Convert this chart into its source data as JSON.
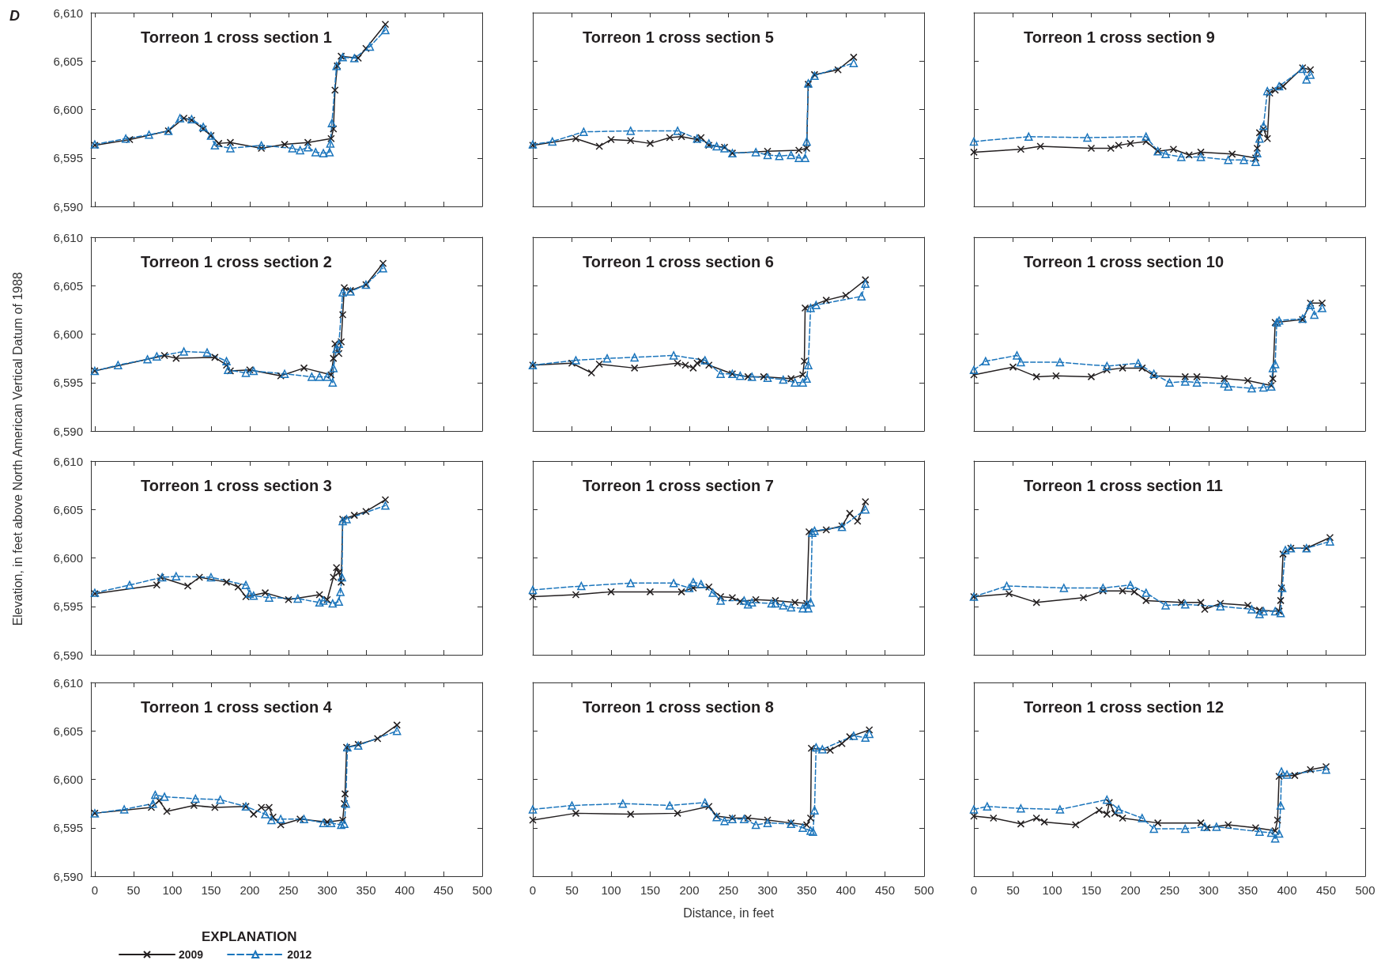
{
  "chart_data": [
    {
      "type": "line",
      "title": "Torreon 1 cross section 1",
      "annotations": [
        "D"
      ],
      "xlim": [
        -5,
        500
      ],
      "xticks": [
        0,
        50,
        100,
        150,
        200,
        250,
        300,
        350,
        400,
        450,
        500
      ],
      "ylim": [
        6590,
        6610
      ],
      "yticks": [
        {
          "value": 6590,
          "label": "6,590"
        },
        {
          "value": 6595,
          "label": "6,595"
        },
        {
          "value": 6600,
          "label": "6,600"
        },
        {
          "value": 6605,
          "label": "6,605"
        },
        {
          "value": 6610,
          "label": "6,610"
        }
      ],
      "tick_labels": "y",
      "legend": false,
      "series": [
        {
          "color": "#231f20",
          "marker": "cross",
          "line_style": "solid",
          "x": [
            0,
            45,
            95,
            115,
            125,
            140,
            150,
            160,
            175,
            215,
            245,
            275,
            305,
            308,
            310,
            313,
            318,
            340,
            350,
            375
          ],
          "values": [
            6596.3,
            6596.9,
            6597.8,
            6599.1,
            6598.9,
            6598,
            6597.3,
            6596.5,
            6596.6,
            6596,
            6596.4,
            6596.6,
            6597,
            6598,
            6602,
            6604.5,
            6605.5,
            6605.3,
            6606.3,
            6608.8
          ]
        },
        {
          "color": "#1b75bc",
          "marker": "triangle",
          "line_style": "dashed",
          "x": [
            0,
            40,
            70,
            95,
            110,
            125,
            140,
            150,
            155,
            175,
            215,
            255,
            265,
            275,
            285,
            295,
            303,
            304,
            306,
            312,
            320,
            335,
            355,
            375
          ],
          "values": [
            6596.4,
            6597,
            6597.4,
            6597.8,
            6599.1,
            6599,
            6598.2,
            6597.3,
            6596.3,
            6596,
            6596.3,
            6596,
            6595.8,
            6596.1,
            6595.6,
            6595.5,
            6595.6,
            6596.5,
            6598.6,
            6604.5,
            6605.4,
            6605.3,
            6606.5,
            6608.2
          ]
        }
      ]
    },
    {
      "type": "line",
      "title": "Torreon 1 cross section 5",
      "xlim": [
        0,
        500
      ],
      "xticks": [
        0,
        50,
        100,
        150,
        200,
        250,
        300,
        350,
        400,
        450,
        500
      ],
      "ylim": [
        6590,
        6610
      ],
      "yticks": [
        6590,
        6595,
        6600,
        6605,
        6610
      ],
      "tick_labels": false,
      "legend": false,
      "series": [
        {
          "color": "#231f20",
          "marker": "cross",
          "line_style": "solid",
          "x": [
            0,
            55,
            85,
            100,
            125,
            150,
            175,
            190,
            210,
            215,
            225,
            245,
            255,
            300,
            340,
            350,
            352,
            360,
            390,
            410
          ],
          "values": [
            6596.3,
            6597,
            6596.2,
            6596.9,
            6596.8,
            6596.5,
            6597.1,
            6597.2,
            6596.9,
            6597.1,
            6596.3,
            6596.1,
            6595.5,
            6595.7,
            6595.8,
            6596,
            6602.6,
            6603.6,
            6604.1,
            6605.4
          ]
        },
        {
          "color": "#1b75bc",
          "marker": "triangle",
          "line_style": "dashed",
          "x": [
            0,
            25,
            65,
            125,
            185,
            210,
            225,
            235,
            245,
            255,
            285,
            300,
            315,
            330,
            340,
            348,
            350,
            352,
            360,
            410
          ],
          "values": [
            6596.4,
            6596.7,
            6597.7,
            6597.8,
            6597.8,
            6597,
            6596.5,
            6596.2,
            6596,
            6595.5,
            6595.6,
            6595.3,
            6595.2,
            6595.3,
            6595,
            6595,
            6596.7,
            6602.7,
            6603.5,
            6604.8
          ]
        }
      ]
    },
    {
      "type": "line",
      "title": "Torreon 1 cross section 9",
      "xlim": [
        0,
        500
      ],
      "xticks": [
        0,
        50,
        100,
        150,
        200,
        250,
        300,
        350,
        400,
        450,
        500
      ],
      "ylim": [
        6590,
        6610
      ],
      "yticks": [
        6590,
        6595,
        6600,
        6605,
        6610
      ],
      "tick_labels": false,
      "legend": false,
      "series": [
        {
          "color": "#231f20",
          "marker": "cross",
          "line_style": "solid",
          "x": [
            0,
            60,
            85,
            150,
            175,
            185,
            200,
            220,
            235,
            255,
            275,
            290,
            330,
            360,
            362,
            365,
            370,
            375,
            378,
            385,
            395,
            420,
            430
          ],
          "values": [
            6595.6,
            6595.9,
            6596.2,
            6596,
            6596,
            6596.3,
            6596.5,
            6596.7,
            6595.7,
            6595.9,
            6595.3,
            6595.6,
            6595.4,
            6595,
            6596,
            6597.6,
            6598,
            6597,
            6601.7,
            6602,
            6602.4,
            6604.3,
            6604.1
          ]
        },
        {
          "color": "#1b75bc",
          "marker": "triangle",
          "line_style": "dashed",
          "x": [
            0,
            70,
            145,
            220,
            235,
            245,
            265,
            290,
            325,
            345,
            360,
            362,
            365,
            370,
            375,
            390,
            420,
            425,
            430
          ],
          "values": [
            6596.7,
            6597.2,
            6597.1,
            6597.2,
            6595.7,
            6595.4,
            6595.1,
            6595.1,
            6594.8,
            6594.8,
            6594.6,
            6595.5,
            6597,
            6598.3,
            6601.9,
            6602.4,
            6604.2,
            6603.1,
            6603.6
          ]
        }
      ]
    },
    {
      "type": "line",
      "title": "Torreon 1 cross section 2",
      "ylabel": "Elevation, in feet above North American Vertical Datum of 1988",
      "xlim": [
        -5,
        500
      ],
      "xticks": [
        0,
        50,
        100,
        150,
        200,
        250,
        300,
        350,
        400,
        450,
        500
      ],
      "ylim": [
        6590,
        6610
      ],
      "yticks": [
        {
          "value": 6590,
          "label": "6,590"
        },
        {
          "value": 6595,
          "label": "6,595"
        },
        {
          "value": 6600,
          "label": "6,600"
        },
        {
          "value": 6605,
          "label": "6,605"
        },
        {
          "value": 6610,
          "label": "6,610"
        }
      ],
      "tick_labels": "y",
      "legend": false,
      "series": [
        {
          "color": "#231f20",
          "marker": "cross",
          "line_style": "solid",
          "x": [
            0,
            90,
            105,
            155,
            170,
            175,
            200,
            240,
            270,
            305,
            308,
            310,
            315,
            318,
            320,
            322,
            330,
            350,
            372
          ],
          "values": [
            6596.2,
            6597.8,
            6597.5,
            6597.6,
            6596.8,
            6596.2,
            6596.3,
            6595.7,
            6596.5,
            6595.8,
            6597.5,
            6599,
            6598,
            6599.2,
            6602,
            6604.8,
            6604.5,
            6605.1,
            6607.3
          ]
        },
        {
          "color": "#1b75bc",
          "marker": "triangle",
          "line_style": "dashed",
          "x": [
            0,
            30,
            68,
            80,
            115,
            145,
            170,
            172,
            195,
            205,
            245,
            280,
            290,
            300,
            307,
            308,
            312,
            315,
            320,
            330,
            350,
            372
          ],
          "values": [
            6596.2,
            6596.8,
            6597.4,
            6597.7,
            6598.2,
            6598.1,
            6597.2,
            6596.3,
            6596,
            6596.2,
            6595.9,
            6595.6,
            6595.6,
            6595.6,
            6595,
            6596.5,
            6598.5,
            6599,
            6604.3,
            6604.4,
            6605.1,
            6606.8
          ]
        }
      ]
    },
    {
      "type": "line",
      "title": "Torreon 1 cross section 6",
      "xlim": [
        0,
        500
      ],
      "xticks": [
        0,
        50,
        100,
        150,
        200,
        250,
        300,
        350,
        400,
        450,
        500
      ],
      "ylim": [
        6590,
        6610
      ],
      "yticks": [
        6590,
        6595,
        6600,
        6605,
        6610
      ],
      "tick_labels": false,
      "legend": false,
      "series": [
        {
          "color": "#231f20",
          "marker": "cross",
          "line_style": "solid",
          "x": [
            0,
            50,
            75,
            85,
            130,
            185,
            195,
            205,
            210,
            215,
            225,
            255,
            275,
            295,
            330,
            345,
            347,
            348,
            375,
            400,
            425
          ],
          "values": [
            6596.8,
            6597,
            6596,
            6596.9,
            6596.5,
            6597,
            6596.8,
            6596.5,
            6597,
            6597.2,
            6596.8,
            6595.9,
            6595.6,
            6595.6,
            6595.4,
            6595.8,
            6597.2,
            6602.7,
            6603.5,
            6604,
            6605.6
          ]
        },
        {
          "color": "#1b75bc",
          "marker": "triangle",
          "line_style": "dashed",
          "x": [
            0,
            55,
            95,
            130,
            180,
            220,
            240,
            255,
            265,
            280,
            300,
            320,
            335,
            345,
            350,
            352,
            355,
            362,
            420,
            425
          ],
          "values": [
            6596.8,
            6597.3,
            6597.5,
            6597.6,
            6597.8,
            6597.3,
            6595.9,
            6595.9,
            6595.7,
            6595.6,
            6595.5,
            6595.3,
            6595,
            6595,
            6595.4,
            6596.8,
            6602.7,
            6603,
            6603.9,
            6605.2
          ]
        }
      ]
    },
    {
      "type": "line",
      "title": "Torreon 1 cross section 10",
      "xlim": [
        0,
        500
      ],
      "xticks": [
        0,
        50,
        100,
        150,
        200,
        250,
        300,
        350,
        400,
        450,
        500
      ],
      "ylim": [
        6590,
        6610
      ],
      "yticks": [
        6590,
        6595,
        6600,
        6605,
        6610
      ],
      "tick_labels": false,
      "legend": false,
      "series": [
        {
          "color": "#231f20",
          "marker": "cross",
          "line_style": "solid",
          "x": [
            0,
            50,
            80,
            105,
            150,
            170,
            190,
            215,
            230,
            270,
            285,
            320,
            350,
            380,
            382,
            385,
            420,
            430,
            445
          ],
          "values": [
            6595.8,
            6596.6,
            6595.6,
            6595.7,
            6595.6,
            6596.3,
            6596.5,
            6596.5,
            6595.7,
            6595.6,
            6595.6,
            6595.4,
            6595.2,
            6594.7,
            6595.4,
            6601.2,
            6601.5,
            6603.2,
            6603.2
          ]
        },
        {
          "color": "#1b75bc",
          "marker": "triangle",
          "line_style": "dashed",
          "x": [
            0,
            15,
            55,
            60,
            110,
            170,
            210,
            230,
            250,
            270,
            285,
            320,
            325,
            355,
            370,
            380,
            382,
            385,
            387,
            390,
            420,
            430,
            435,
            445
          ],
          "values": [
            6596.3,
            6597.2,
            6597.8,
            6597.1,
            6597.1,
            6596.7,
            6597,
            6595.9,
            6595,
            6595.1,
            6595,
            6594.9,
            6594.6,
            6594.4,
            6594.5,
            6594.6,
            6596.5,
            6596.9,
            6601.2,
            6601.4,
            6601.6,
            6603,
            6602,
            6602.7
          ]
        }
      ]
    },
    {
      "type": "line",
      "title": "Torreon 1 cross section 3",
      "xlim": [
        -5,
        500
      ],
      "xticks": [
        0,
        50,
        100,
        150,
        200,
        250,
        300,
        350,
        400,
        450,
        500
      ],
      "ylim": [
        6590,
        6610
      ],
      "yticks": [
        {
          "value": 6590,
          "label": "6,590"
        },
        {
          "value": 6595,
          "label": "6,595"
        },
        {
          "value": 6600,
          "label": "6,600"
        },
        {
          "value": 6605,
          "label": "6,605"
        },
        {
          "value": 6610,
          "label": "6,610"
        }
      ],
      "tick_labels": "y",
      "legend": false,
      "series": [
        {
          "color": "#231f20",
          "marker": "cross",
          "line_style": "solid",
          "x": [
            0,
            80,
            85,
            120,
            135,
            170,
            185,
            195,
            220,
            250,
            290,
            300,
            308,
            312,
            315,
            318,
            320,
            335,
            350,
            375
          ],
          "values": [
            6596.3,
            6597.2,
            6598,
            6597.1,
            6598,
            6597.5,
            6597,
            6596,
            6596.4,
            6595.7,
            6596.2,
            6595.7,
            6598,
            6599,
            6598.5,
            6597.5,
            6604,
            6604.4,
            6604.8,
            6606
          ]
        },
        {
          "color": "#1b75bc",
          "marker": "triangle",
          "line_style": "dashed",
          "x": [
            0,
            45,
            87,
            105,
            150,
            195,
            200,
            205,
            225,
            262,
            290,
            295,
            307,
            315,
            317,
            319,
            320,
            325,
            375
          ],
          "values": [
            6596.4,
            6597.2,
            6598,
            6598.1,
            6598,
            6597.2,
            6596.3,
            6596.1,
            6595.9,
            6595.8,
            6595.4,
            6595.6,
            6595.3,
            6595.5,
            6596.5,
            6598,
            6603.8,
            6604,
            6605.4
          ]
        }
      ]
    },
    {
      "type": "line",
      "title": "Torreon 1 cross section 7",
      "xlim": [
        0,
        500
      ],
      "xticks": [
        0,
        50,
        100,
        150,
        200,
        250,
        300,
        350,
        400,
        450,
        500
      ],
      "ylim": [
        6590,
        6610
      ],
      "yticks": [
        6590,
        6595,
        6600,
        6605,
        6610
      ],
      "tick_labels": false,
      "legend": false,
      "series": [
        {
          "color": "#231f20",
          "marker": "cross",
          "line_style": "solid",
          "x": [
            0,
            55,
            100,
            150,
            190,
            205,
            225,
            240,
            255,
            265,
            285,
            310,
            335,
            350,
            353,
            375,
            395,
            405,
            415,
            425
          ],
          "values": [
            6596,
            6596.2,
            6596.5,
            6596.5,
            6596.5,
            6596.9,
            6597,
            6596,
            6595.9,
            6595.5,
            6595.7,
            6595.6,
            6595.4,
            6595.3,
            6602.7,
            6602.9,
            6603.3,
            6604.6,
            6603.8,
            6605.8
          ]
        },
        {
          "color": "#1b75bc",
          "marker": "triangle",
          "line_style": "dashed",
          "x": [
            0,
            62,
            125,
            180,
            200,
            205,
            215,
            230,
            240,
            270,
            275,
            280,
            305,
            310,
            320,
            330,
            345,
            350,
            352,
            355,
            357,
            360,
            395,
            425
          ],
          "values": [
            6596.7,
            6597.1,
            6597.4,
            6597.4,
            6596.9,
            6597.5,
            6597.3,
            6596.4,
            6595.6,
            6595.6,
            6595.2,
            6595.4,
            6595.3,
            6595.3,
            6595.1,
            6594.9,
            6594.8,
            6595.2,
            6594.8,
            6595.4,
            6602.6,
            6602.8,
            6603.2,
            6605
          ]
        }
      ]
    },
    {
      "type": "line",
      "title": "Torreon 1 cross section 11",
      "xlim": [
        0,
        500
      ],
      "xticks": [
        0,
        50,
        100,
        150,
        200,
        250,
        300,
        350,
        400,
        450,
        500
      ],
      "ylim": [
        6590,
        6610
      ],
      "yticks": [
        6590,
        6595,
        6600,
        6605,
        6610
      ],
      "tick_labels": false,
      "legend": false,
      "series": [
        {
          "color": "#231f20",
          "marker": "cross",
          "line_style": "solid",
          "x": [
            0,
            45,
            80,
            140,
            165,
            190,
            205,
            220,
            265,
            290,
            295,
            315,
            350,
            365,
            390,
            392,
            393,
            395,
            405,
            425,
            455
          ],
          "values": [
            6596,
            6596.3,
            6595.4,
            6595.9,
            6596.6,
            6596.6,
            6596.5,
            6595.6,
            6595.4,
            6595.4,
            6594.7,
            6595.3,
            6595.1,
            6594.6,
            6594.5,
            6595.6,
            6596.9,
            6600.4,
            6601,
            6601,
            6602.1
          ]
        },
        {
          "color": "#1b75bc",
          "marker": "triangle",
          "line_style": "dashed",
          "x": [
            0,
            42,
            115,
            165,
            200,
            220,
            245,
            270,
            315,
            355,
            365,
            370,
            385,
            392,
            394,
            398,
            405,
            425,
            455
          ],
          "values": [
            6596,
            6597.1,
            6596.9,
            6596.9,
            6597.2,
            6596.4,
            6595.1,
            6595.2,
            6595,
            6594.7,
            6594.2,
            6594.5,
            6594.5,
            6594.3,
            6596.9,
            6600.8,
            6601,
            6601,
            6601.7
          ]
        }
      ]
    },
    {
      "type": "line",
      "title": "Torreon 1 cross section 4",
      "legend_title": "EXPLANATION",
      "xlim": [
        -5,
        500
      ],
      "xticks": [
        0,
        50,
        100,
        150,
        200,
        250,
        300,
        350,
        400,
        450,
        500
      ],
      "ylim": [
        6590,
        6610
      ],
      "yticks": [
        {
          "value": 6590,
          "label": "6,590"
        },
        {
          "value": 6595,
          "label": "6,595"
        },
        {
          "value": 6600,
          "label": "6,600"
        },
        {
          "value": 6605,
          "label": "6,605"
        },
        {
          "value": 6610,
          "label": "6,610"
        }
      ],
      "legend": "bottom left",
      "series": [
        {
          "name": "2009",
          "color": "#231f20",
          "marker": "cross",
          "line_style": "solid",
          "x": [
            0,
            73,
            83,
            93,
            128,
            155,
            195,
            205,
            215,
            225,
            230,
            240,
            265,
            300,
            320,
            322,
            323,
            325,
            340,
            365,
            390
          ],
          "values": [
            6596.5,
            6597.1,
            6597.8,
            6596.7,
            6597.3,
            6597.1,
            6597.2,
            6596.4,
            6597.1,
            6597.1,
            6596.1,
            6595.3,
            6595.9,
            6595.6,
            6595.8,
            6597.5,
            6598.5,
            6603.3,
            6603.6,
            6604.2,
            6605.6
          ]
        },
        {
          "name": "2012",
          "color": "#1b75bc",
          "marker": "triangle",
          "line_style": "dashed",
          "x": [
            0,
            38,
            75,
            78,
            90,
            130,
            162,
            195,
            220,
            228,
            240,
            270,
            295,
            305,
            318,
            322,
            324,
            326,
            340,
            390
          ],
          "values": [
            6596.5,
            6596.9,
            6597.5,
            6598.4,
            6598.2,
            6598,
            6597.9,
            6597.2,
            6596.4,
            6595.8,
            6595.9,
            6595.9,
            6595.5,
            6595.5,
            6595.3,
            6595.4,
            6597.5,
            6603.3,
            6603.5,
            6605
          ]
        }
      ]
    },
    {
      "type": "line",
      "title": "Torreon 1 cross section 8",
      "xlabel": "Distance, in feet",
      "xlim": [
        0,
        500
      ],
      "xticks": [
        0,
        50,
        100,
        150,
        200,
        250,
        300,
        350,
        400,
        450,
        500
      ],
      "ylim": [
        6590,
        6610
      ],
      "yticks": [
        6590,
        6595,
        6600,
        6605,
        6610
      ],
      "tick_labels": "x",
      "legend": false,
      "series": [
        {
          "color": "#231f20",
          "marker": "cross",
          "line_style": "solid",
          "x": [
            0,
            55,
            125,
            185,
            225,
            235,
            255,
            275,
            300,
            330,
            350,
            355,
            356,
            380,
            395,
            405,
            430
          ],
          "values": [
            6595.8,
            6596.5,
            6596.4,
            6596.5,
            6597.2,
            6596.2,
            6596,
            6596,
            6595.8,
            6595.5,
            6595.3,
            6596,
            6603.2,
            6603,
            6603.7,
            6604.4,
            6605.1
          ]
        },
        {
          "color": "#1b75bc",
          "marker": "triangle",
          "line_style": "dashed",
          "x": [
            0,
            50,
            115,
            175,
            220,
            235,
            245,
            255,
            270,
            285,
            300,
            330,
            345,
            355,
            358,
            360,
            362,
            370,
            410,
            425,
            430
          ],
          "values": [
            6596.9,
            6597.3,
            6597.5,
            6597.3,
            6597.6,
            6596.1,
            6595.7,
            6595.9,
            6595.9,
            6595.3,
            6595.5,
            6595.4,
            6595,
            6594.7,
            6594.6,
            6596.8,
            6603.3,
            6603.1,
            6604.5,
            6604.3,
            6604.7
          ]
        }
      ]
    },
    {
      "type": "line",
      "title": "Torreon 1 cross section 12",
      "xlim": [
        0,
        500
      ],
      "xticks": [
        0,
        50,
        100,
        150,
        200,
        250,
        300,
        350,
        400,
        450,
        500
      ],
      "ylim": [
        6590,
        6610
      ],
      "yticks": [
        6590,
        6595,
        6600,
        6605,
        6610
      ],
      "tick_labels": "x",
      "legend": false,
      "series": [
        {
          "color": "#231f20",
          "marker": "cross",
          "line_style": "solid",
          "x": [
            0,
            25,
            60,
            80,
            90,
            130,
            160,
            170,
            173,
            180,
            190,
            235,
            290,
            298,
            325,
            360,
            385,
            388,
            390,
            410,
            430,
            450
          ],
          "values": [
            6596.2,
            6596,
            6595.4,
            6596,
            6595.6,
            6595.3,
            6596.8,
            6596.4,
            6597.6,
            6596.5,
            6596,
            6595.5,
            6595.5,
            6595,
            6595.3,
            6595,
            6594.7,
            6595.8,
            6600.3,
            6600.4,
            6601,
            6601.3
          ]
        },
        {
          "color": "#1b75bc",
          "marker": "triangle",
          "line_style": "dashed",
          "x": [
            0,
            17,
            60,
            110,
            170,
            185,
            215,
            230,
            270,
            295,
            310,
            365,
            380,
            385,
            390,
            392,
            393,
            400,
            450
          ],
          "values": [
            6596.9,
            6597.2,
            6597,
            6596.9,
            6597.9,
            6596.9,
            6596,
            6594.9,
            6594.9,
            6595.1,
            6595.1,
            6594.6,
            6594.5,
            6593.9,
            6594.4,
            6597.3,
            6600.8,
            6600.5,
            6601
          ]
        }
      ]
    }
  ]
}
